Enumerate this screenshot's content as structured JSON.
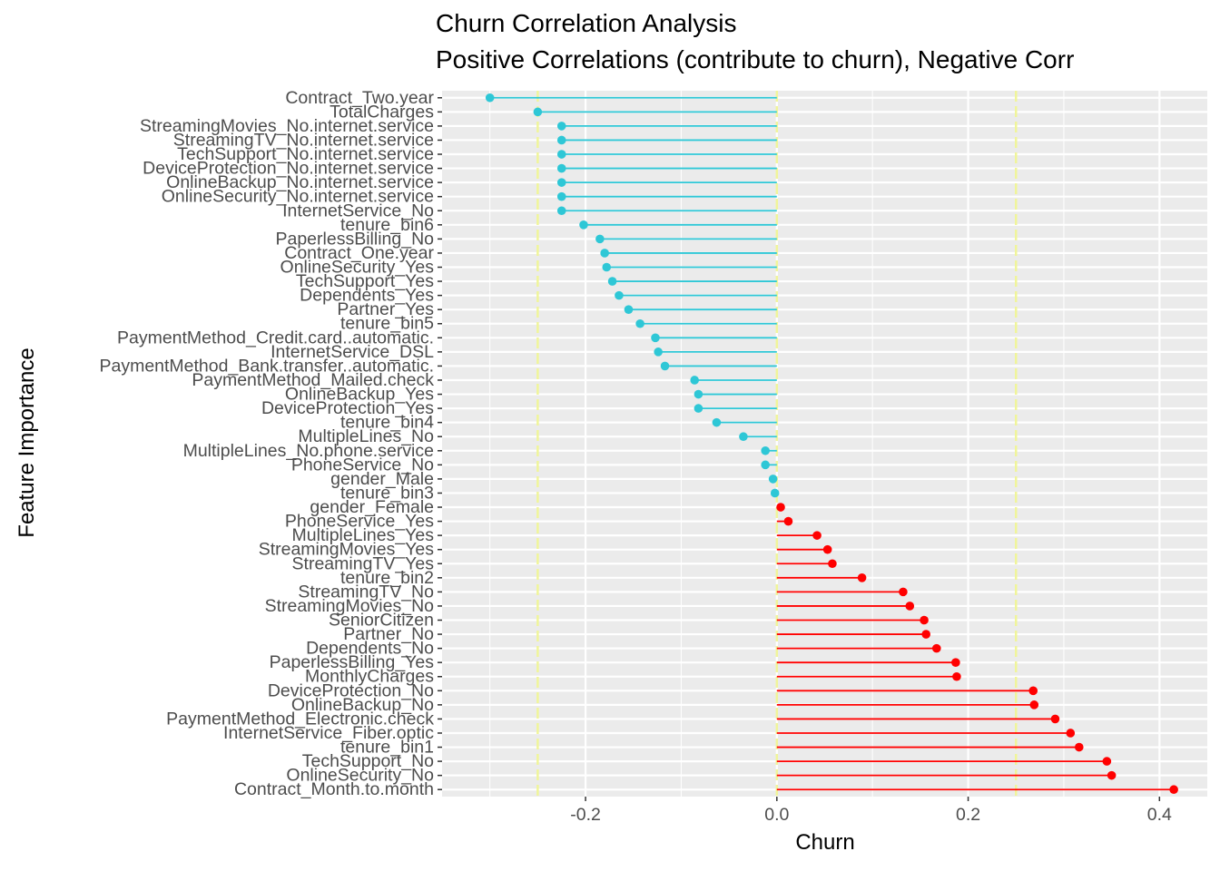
{
  "chart_data": {
    "type": "lollipop",
    "title": "Churn Correlation Analysis",
    "subtitle": "Positive Correlations (contribute to churn), Negative Corr",
    "xlabel": "Churn",
    "ylabel": "Feature Importance",
    "xlim": [
      -0.35,
      0.45
    ],
    "x_ticks": [
      -0.2,
      0.0,
      0.2,
      0.4
    ],
    "x_tick_labels": [
      "-0.2",
      "0.0",
      "0.2",
      "0.4"
    ],
    "reference_lines": [
      -0.25,
      0.0,
      0.25
    ],
    "grid": true,
    "colors": {
      "negative": "#2ec7d6",
      "positive": "#ff0000",
      "reference_line": "#f0f59a",
      "panel_background": "#ebebeb",
      "grid": "#ffffff"
    },
    "points": [
      {
        "label": "Contract_Two.year",
        "value": -0.3
      },
      {
        "label": "TotalCharges",
        "value": -0.25
      },
      {
        "label": "StreamingMovies_No.internet.service",
        "value": -0.225
      },
      {
        "label": "StreamingTV_No.internet.service",
        "value": -0.225
      },
      {
        "label": "TechSupport_No.internet.service",
        "value": -0.225
      },
      {
        "label": "DeviceProtection_No.internet.service",
        "value": -0.225
      },
      {
        "label": "OnlineBackup_No.internet.service",
        "value": -0.225
      },
      {
        "label": "OnlineSecurity_No.internet.service",
        "value": -0.225
      },
      {
        "label": "InternetService_No",
        "value": -0.225
      },
      {
        "label": "tenure_bin6",
        "value": -0.202
      },
      {
        "label": "PaperlessBilling_No",
        "value": -0.185
      },
      {
        "label": "Contract_One.year",
        "value": -0.18
      },
      {
        "label": "OnlineSecurity_Yes",
        "value": -0.178
      },
      {
        "label": "TechSupport_Yes",
        "value": -0.172
      },
      {
        "label": "Dependents_Yes",
        "value": -0.165
      },
      {
        "label": "Partner_Yes",
        "value": -0.155
      },
      {
        "label": "tenure_bin5",
        "value": -0.143
      },
      {
        "label": "PaymentMethod_Credit.card..automatic.",
        "value": -0.127
      },
      {
        "label": "InternetService_DSL",
        "value": -0.124
      },
      {
        "label": "PaymentMethod_Bank.transfer..automatic.",
        "value": -0.117
      },
      {
        "label": "PaymentMethod_Mailed.check",
        "value": -0.086
      },
      {
        "label": "OnlineBackup_Yes",
        "value": -0.082
      },
      {
        "label": "DeviceProtection_Yes",
        "value": -0.082
      },
      {
        "label": "tenure_bin4",
        "value": -0.063
      },
      {
        "label": "MultipleLines_No",
        "value": -0.035
      },
      {
        "label": "MultipleLines_No.phone.service",
        "value": -0.012
      },
      {
        "label": "PhoneService_No",
        "value": -0.012
      },
      {
        "label": "gender_Male",
        "value": -0.004
      },
      {
        "label": "tenure_bin3",
        "value": -0.002
      },
      {
        "label": "gender_Female",
        "value": 0.004
      },
      {
        "label": "PhoneService_Yes",
        "value": 0.012
      },
      {
        "label": "MultipleLines_Yes",
        "value": 0.042
      },
      {
        "label": "StreamingMovies_Yes",
        "value": 0.053
      },
      {
        "label": "StreamingTV_Yes",
        "value": 0.058
      },
      {
        "label": "tenure_bin2",
        "value": 0.089
      },
      {
        "label": "StreamingTV_No",
        "value": 0.132
      },
      {
        "label": "StreamingMovies_No",
        "value": 0.139
      },
      {
        "label": "SeniorCitizen",
        "value": 0.154
      },
      {
        "label": "Partner_No",
        "value": 0.156
      },
      {
        "label": "Dependents_No",
        "value": 0.167
      },
      {
        "label": "PaperlessBilling_Yes",
        "value": 0.187
      },
      {
        "label": "MonthlyCharges",
        "value": 0.188
      },
      {
        "label": "DeviceProtection_No",
        "value": 0.268
      },
      {
        "label": "OnlineBackup_No",
        "value": 0.269
      },
      {
        "label": "PaymentMethod_Electronic.check",
        "value": 0.291
      },
      {
        "label": "InternetService_Fiber.optic",
        "value": 0.307
      },
      {
        "label": "tenure_bin1",
        "value": 0.316
      },
      {
        "label": "TechSupport_No",
        "value": 0.345
      },
      {
        "label": "OnlineSecurity_No",
        "value": 0.35
      },
      {
        "label": "Contract_Month.to.month",
        "value": 0.415
      }
    ]
  }
}
